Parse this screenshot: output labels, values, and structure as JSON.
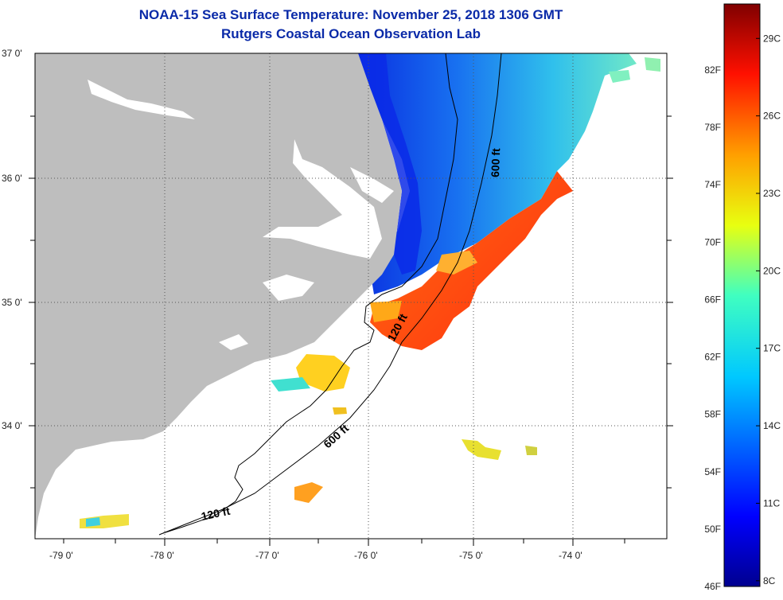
{
  "title": "NOAA-15 Sea Surface Temperature:  November 25, 2018 1306 GMT",
  "subtitle": "Rutgers Coastal Ocean Observation Lab",
  "lat_labels": [
    {
      "text": "37 0'",
      "value": 37.0
    },
    {
      "text": "36 0'",
      "value": 36.0
    },
    {
      "text": "35 0'",
      "value": 35.0
    },
    {
      "text": "34 0'",
      "value": 34.0
    }
  ],
  "lon_labels": [
    {
      "text": "-79 0'",
      "value": -79.0
    },
    {
      "text": "-78 0'",
      "value": -78.0
    },
    {
      "text": "-77 0'",
      "value": -77.0
    },
    {
      "text": "-76 0'",
      "value": -76.0
    },
    {
      "text": "-75 0'",
      "value": -75.0
    },
    {
      "text": "-74 0'",
      "value": -74.0
    }
  ],
  "contours": [
    {
      "label": "600 ft"
    },
    {
      "label": "120 ft"
    },
    {
      "label": "600 ft"
    },
    {
      "label": "120 ft"
    }
  ],
  "colorbar": {
    "fahrenheit": [
      {
        "text": "82F",
        "value": 82
      },
      {
        "text": "78F",
        "value": 78
      },
      {
        "text": "74F",
        "value": 74
      },
      {
        "text": "70F",
        "value": 70
      },
      {
        "text": "66F",
        "value": 66
      },
      {
        "text": "62F",
        "value": 62
      },
      {
        "text": "58F",
        "value": 58
      },
      {
        "text": "54F",
        "value": 54
      },
      {
        "text": "50F",
        "value": 50
      },
      {
        "text": "46F",
        "value": 46
      }
    ],
    "celsius": [
      {
        "text": "29C",
        "value": 29
      },
      {
        "text": "26C",
        "value": 26
      },
      {
        "text": "23C",
        "value": 23
      },
      {
        "text": "20C",
        "value": 20
      },
      {
        "text": "17C",
        "value": 17
      },
      {
        "text": "14C",
        "value": 14
      },
      {
        "text": "11C",
        "value": 11
      },
      {
        "text": "8C",
        "value": 8
      }
    ]
  },
  "colors": {
    "land": "#bebebe",
    "title": "#0a2aa8",
    "warm": "#ff3a10",
    "cold": "#0a2ae8"
  }
}
